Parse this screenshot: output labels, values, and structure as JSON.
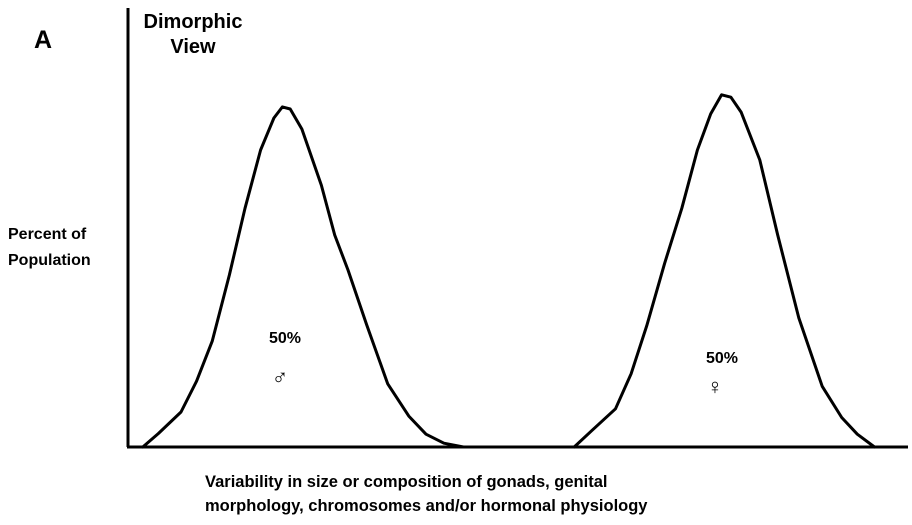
{
  "chart_data": {
    "type": "line",
    "panel_label": "A",
    "title_lines": [
      "Dimorphic",
      "View"
    ],
    "ylabel_lines": [
      "Percent of",
      "Population"
    ],
    "xlabel_lines": [
      "Variability in size or composition of gonads, genital",
      "morphology, chromosomes and/or hormonal physiology"
    ],
    "xlim": [
      0,
      100
    ],
    "ylim": [
      0,
      100
    ],
    "series": [
      {
        "name": "male",
        "symbol": "♂",
        "share_label": "50%",
        "x": [
          1.9,
          3.9,
          6.8,
          8.8,
          10.8,
          13.0,
          15.0,
          17.0,
          18.7,
          19.8,
          20.8,
          22.3,
          24.8,
          26.5,
          28.2,
          30.6,
          33.3,
          36.0,
          38.2,
          40.5,
          43.0
        ],
        "y": [
          0,
          3.9,
          10.1,
          19.0,
          30.5,
          49.6,
          68.8,
          85.6,
          94.8,
          98.0,
          97.4,
          91.6,
          75.4,
          61.1,
          51.0,
          35.2,
          18.2,
          8.9,
          3.7,
          1.1,
          0
        ]
      },
      {
        "name": "female",
        "symbol": "♀",
        "share_label": "50%",
        "x": [
          57.2,
          59.5,
          62.5,
          64.5,
          66.5,
          68.8,
          71.0,
          73.0,
          74.7,
          76.1,
          77.3,
          78.6,
          81.0,
          83.3,
          86.0,
          89.0,
          91.5,
          93.5,
          95.7
        ],
        "y": [
          0,
          4.8,
          11.0,
          21.1,
          34.9,
          52.9,
          68.8,
          85.6,
          96.0,
          101.5,
          100.8,
          96.5,
          82.7,
          61.1,
          37.2,
          17.5,
          8.5,
          3.7,
          0
        ]
      }
    ]
  }
}
